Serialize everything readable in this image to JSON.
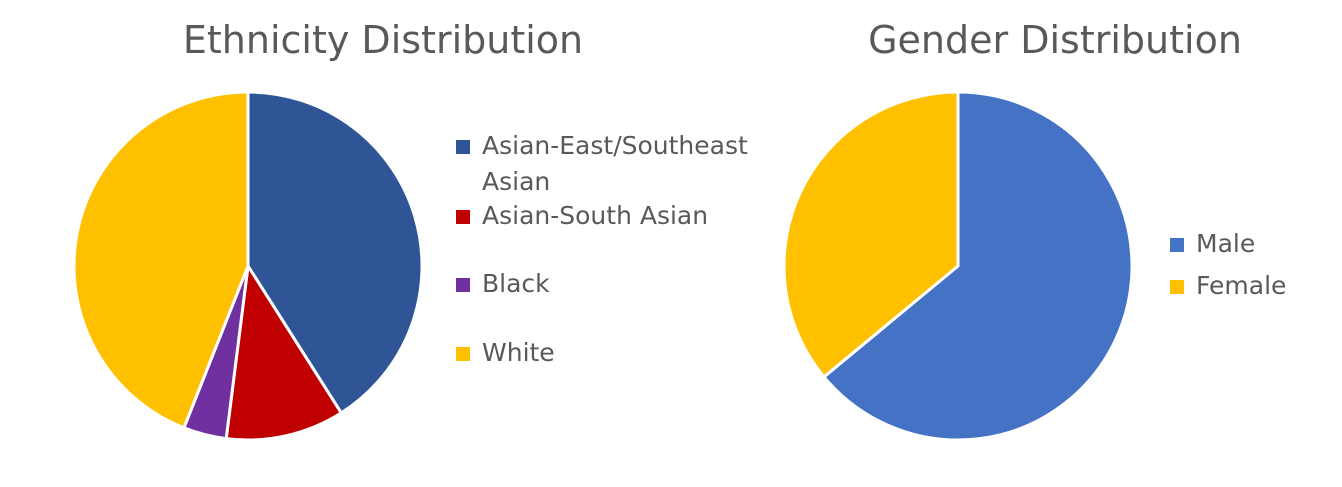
{
  "chart_data": [
    {
      "type": "pie",
      "title": "Ethnicity Distribution",
      "categories": [
        "Asian-East/Southeast Asian",
        "Asian-South Asian",
        "Black",
        "White"
      ],
      "values": [
        41,
        11,
        4,
        44
      ],
      "colors": [
        "#2F5597",
        "#C00000",
        "#7030A0",
        "#FFC000"
      ],
      "legend": "right"
    },
    {
      "type": "pie",
      "title": "Gender Distribution",
      "categories": [
        "Male",
        "Female"
      ],
      "values": [
        64,
        36
      ],
      "colors": [
        "#4472C4",
        "#FFC000"
      ],
      "legend": "right"
    }
  ]
}
